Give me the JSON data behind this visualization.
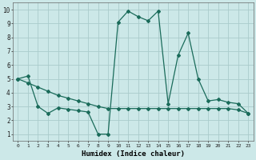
{
  "xlabel": "Humidex (Indice chaleur)",
  "bg_color": "#cce8e8",
  "grid_color": "#aacccc",
  "line_color": "#1a6b5a",
  "xlim": [
    -0.5,
    23.5
  ],
  "ylim": [
    0.5,
    10.5
  ],
  "xticks": [
    0,
    1,
    2,
    3,
    4,
    5,
    6,
    7,
    8,
    9,
    10,
    11,
    12,
    13,
    14,
    15,
    16,
    17,
    18,
    19,
    20,
    21,
    22,
    23
  ],
  "yticks": [
    1,
    2,
    3,
    4,
    5,
    6,
    7,
    8,
    9,
    10
  ],
  "series1_x": [
    0,
    1,
    2,
    3,
    4,
    5,
    6,
    7,
    8,
    9,
    10,
    11,
    12,
    13,
    14,
    15,
    16,
    17,
    18,
    19,
    20,
    21,
    22,
    23
  ],
  "series1_y": [
    5.0,
    5.2,
    3.0,
    2.5,
    2.9,
    2.8,
    2.7,
    2.6,
    1.0,
    1.0,
    9.1,
    9.9,
    9.5,
    9.2,
    9.9,
    3.2,
    6.7,
    8.3,
    5.0,
    3.4,
    3.5,
    3.3,
    3.2,
    2.5
  ],
  "series2_x": [
    0,
    1,
    2,
    3,
    4,
    5,
    6,
    7,
    8,
    9,
    10,
    11,
    12,
    13,
    14,
    15,
    16,
    17,
    18,
    19,
    20,
    21,
    22,
    23
  ],
  "series2_y": [
    5.0,
    4.7,
    4.4,
    4.1,
    3.8,
    3.6,
    3.4,
    3.2,
    3.0,
    2.85,
    2.85,
    2.85,
    2.85,
    2.85,
    2.85,
    2.85,
    2.85,
    2.85,
    2.85,
    2.85,
    2.85,
    2.85,
    2.75,
    2.5
  ]
}
